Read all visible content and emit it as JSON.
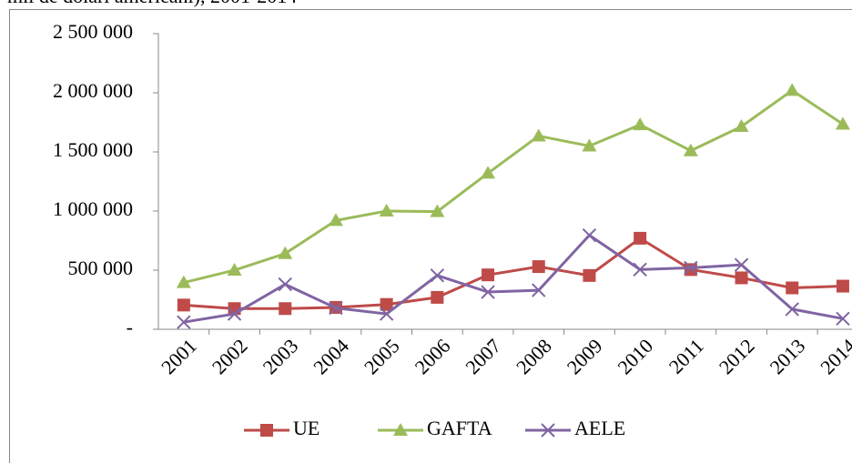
{
  "chart_data": {
    "type": "line",
    "title": "mii de dolari americani), 2001-2014",
    "categories": [
      "2001",
      "2002",
      "2003",
      "2004",
      "2005",
      "2006",
      "2007",
      "2008",
      "2009",
      "2010",
      "2011",
      "2012",
      "2013",
      "2014"
    ],
    "series": [
      {
        "name": "UE",
        "color": "#be4b48",
        "marker": "square",
        "values": [
          205000,
          175000,
          175000,
          185000,
          210000,
          270000,
          460000,
          530000,
          455000,
          770000,
          505000,
          435000,
          350000,
          365000
        ]
      },
      {
        "name": "GAFTA",
        "color": "#9bbb59",
        "marker": "triangle",
        "values": [
          395000,
          500000,
          640000,
          920000,
          1000000,
          995000,
          1320000,
          1635000,
          1550000,
          1730000,
          1510000,
          1715000,
          2020000,
          1735000
        ]
      },
      {
        "name": "AELE",
        "color": "#8064a2",
        "marker": "x",
        "values": [
          60000,
          130000,
          380000,
          180000,
          130000,
          455000,
          315000,
          330000,
          795000,
          505000,
          520000,
          545000,
          170000,
          90000
        ]
      }
    ],
    "ylim": [
      0,
      2500000
    ],
    "yticks": [
      {
        "value": 0,
        "label": "-"
      },
      {
        "value": 500000,
        "label": "500 000"
      },
      {
        "value": 1000000,
        "label": "1 000 000"
      },
      {
        "value": 1500000,
        "label": "1 500 000"
      },
      {
        "value": 2000000,
        "label": "2 000 000"
      },
      {
        "value": 2500000,
        "label": "2 500 000"
      }
    ],
    "legend": "bottom"
  }
}
